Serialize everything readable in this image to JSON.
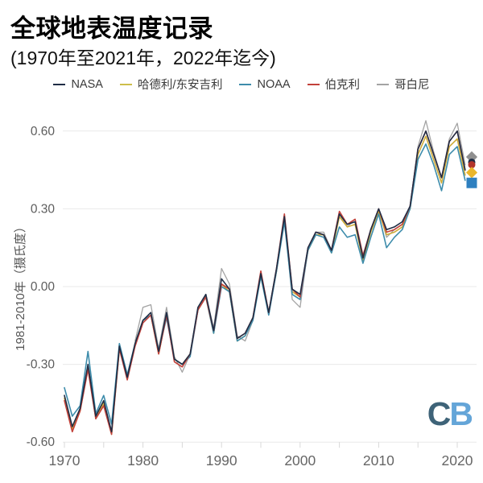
{
  "title": "全球地表温度记录",
  "subtitle": "(1970年至2021年，2022年迄今)",
  "legend": {
    "items": [
      {
        "label": "NASA",
        "color": "#1f2d45"
      },
      {
        "label": "哈德利/东安吉利",
        "color": "#cdbe4a"
      },
      {
        "label": "NOAA",
        "color": "#3d8cab"
      },
      {
        "label": "伯克利",
        "color": "#c2413a"
      },
      {
        "label": "哥白尼",
        "color": "#a3a3a3"
      }
    ]
  },
  "logo": {
    "c": "C",
    "b": "B",
    "c_color": "#3e6378",
    "b_color": "#64a5d8"
  },
  "chart_data": {
    "type": "line",
    "title": "全球地表温度记录",
    "subtitle": "(1970年至2021年，2022年迄今)",
    "ylabel": "1981-2010年（摄氏度）",
    "xlabel": "",
    "x_start": 1970,
    "x_end": 2021,
    "ylim": [
      -0.6,
      0.68
    ],
    "grid": "horizontal",
    "legend_position": "top",
    "yticks": [
      {
        "v": 0.6,
        "label": "0.60"
      },
      {
        "v": 0.3,
        "label": "0.30"
      },
      {
        "v": 0.0,
        "label": "0.00"
      },
      {
        "v": -0.3,
        "label": "-0.30"
      },
      {
        "v": -0.6,
        "label": "-0.60"
      }
    ],
    "xtick_minor_step": 5,
    "xtick_labels": [
      1970,
      1980,
      1990,
      2000,
      2010,
      2020
    ],
    "series": [
      {
        "name": "哥白尼",
        "name_en": "Copernicus",
        "color": "#a3a3a3",
        "width": 1.3,
        "values": [
          null,
          null,
          null,
          null,
          null,
          null,
          null,
          null,
          null,
          -0.21,
          -0.08,
          -0.07,
          -0.24,
          -0.08,
          -0.27,
          -0.33,
          -0.26,
          -0.08,
          -0.03,
          -0.16,
          0.07,
          0.01,
          -0.19,
          -0.21,
          -0.13,
          0.05,
          -0.11,
          0.06,
          0.27,
          -0.05,
          -0.08,
          0.15,
          0.21,
          0.21,
          0.14,
          0.28,
          0.23,
          0.26,
          0.11,
          0.22,
          0.3,
          0.19,
          0.22,
          0.24,
          0.31,
          0.54,
          0.64,
          0.52,
          0.42,
          0.57,
          0.63,
          0.47
        ]
      },
      {
        "name": "哈德利/东安吉利",
        "name_en": "Hadley/UEA",
        "color": "#cfac38",
        "width": 1.6,
        "values": [
          -0.43,
          -0.55,
          -0.48,
          -0.31,
          -0.51,
          -0.45,
          -0.57,
          -0.24,
          -0.35,
          -0.22,
          -0.13,
          -0.11,
          -0.26,
          -0.11,
          -0.28,
          -0.3,
          -0.26,
          -0.09,
          -0.04,
          -0.18,
          0.01,
          -0.02,
          -0.21,
          -0.19,
          -0.12,
          0.04,
          -0.1,
          0.06,
          0.27,
          -0.02,
          -0.04,
          0.14,
          0.2,
          0.2,
          0.13,
          0.27,
          0.23,
          0.24,
          0.1,
          0.21,
          0.29,
          0.2,
          0.21,
          0.23,
          0.3,
          0.51,
          0.58,
          0.49,
          0.4,
          0.54,
          0.57,
          0.43
        ]
      },
      {
        "name": "NOAA",
        "name_en": "NOAA",
        "color": "#3d8cab",
        "width": 1.6,
        "values": [
          -0.39,
          -0.5,
          -0.46,
          -0.25,
          -0.49,
          -0.42,
          -0.53,
          -0.22,
          -0.34,
          -0.22,
          -0.13,
          -0.11,
          -0.25,
          -0.12,
          -0.28,
          -0.3,
          -0.27,
          -0.09,
          -0.04,
          -0.18,
          0.0,
          -0.02,
          -0.21,
          -0.19,
          -0.13,
          0.04,
          -0.11,
          0.06,
          0.25,
          -0.03,
          -0.05,
          0.14,
          0.2,
          0.19,
          0.13,
          0.23,
          0.19,
          0.2,
          0.09,
          0.19,
          0.28,
          0.15,
          0.19,
          0.22,
          0.3,
          0.49,
          0.55,
          0.47,
          0.37,
          0.51,
          0.54,
          0.41
        ]
      },
      {
        "name": "伯克利",
        "name_en": "Berkeley",
        "color": "#c2413a",
        "width": 1.6,
        "values": [
          -0.44,
          -0.56,
          -0.48,
          -0.32,
          -0.51,
          -0.46,
          -0.57,
          -0.24,
          -0.36,
          -0.23,
          -0.14,
          -0.11,
          -0.26,
          -0.11,
          -0.29,
          -0.31,
          -0.26,
          -0.09,
          -0.04,
          -0.17,
          0.01,
          -0.01,
          -0.2,
          -0.18,
          -0.12,
          0.06,
          -0.1,
          0.07,
          0.28,
          -0.01,
          -0.04,
          0.15,
          0.21,
          0.2,
          0.14,
          0.29,
          0.24,
          0.26,
          0.12,
          0.22,
          0.3,
          0.21,
          0.22,
          0.24,
          0.31,
          0.53,
          0.6,
          0.51,
          0.42,
          0.56,
          0.6,
          0.45
        ]
      },
      {
        "name": "NASA",
        "name_en": "NASA",
        "color": "#1f2d45",
        "width": 1.6,
        "values": [
          -0.42,
          -0.54,
          -0.47,
          -0.3,
          -0.5,
          -0.44,
          -0.56,
          -0.23,
          -0.35,
          -0.22,
          -0.13,
          -0.1,
          -0.25,
          -0.1,
          -0.28,
          -0.3,
          -0.26,
          -0.08,
          -0.03,
          -0.17,
          0.03,
          -0.01,
          -0.2,
          -0.18,
          -0.12,
          0.05,
          -0.1,
          0.07,
          0.27,
          -0.01,
          -0.03,
          0.15,
          0.21,
          0.2,
          0.14,
          0.28,
          0.24,
          0.25,
          0.11,
          0.22,
          0.3,
          0.22,
          0.23,
          0.25,
          0.31,
          0.53,
          0.6,
          0.51,
          0.42,
          0.56,
          0.6,
          0.45
        ]
      }
    ],
    "markers_2022_to_date": [
      {
        "name": "哥白尼",
        "shape": "diamond",
        "color": "#8f8f8f",
        "value": 0.5
      },
      {
        "name": "NASA",
        "shape": "circle",
        "color": "#1f2d45",
        "value": 0.48
      },
      {
        "name": "伯克利",
        "shape": "circle",
        "color": "#b2352c",
        "value": 0.47
      },
      {
        "name": "哈德利/东安吉利",
        "shape": "diamond",
        "color": "#eab62c",
        "value": 0.44
      },
      {
        "name": "NOAA",
        "shape": "square",
        "color": "#2e80c0",
        "value": 0.4
      }
    ]
  }
}
